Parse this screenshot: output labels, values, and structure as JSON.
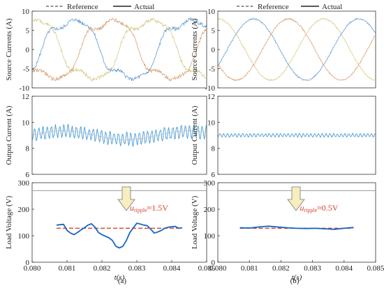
{
  "legend": {
    "reference_label": "Reference",
    "actual_label": "Actual"
  },
  "panel_labels": [
    "(a)",
    "(b)"
  ],
  "colors": {
    "phase_a": "#3b7fc4",
    "phase_b": "#d4874e",
    "phase_c": "#c9be6a",
    "output": "#4a9ad6",
    "output_ref": "#e8a878",
    "load_actual": "#1565c0",
    "load_ref": "#d9412b",
    "arrow": "#f6eebf",
    "axis": "#333333",
    "refline": "#9a9a9a"
  },
  "chart_data": [
    {
      "type": "line",
      "panel": "(a)",
      "ylabel": "Source Currents (A)",
      "xlim": [
        0.08,
        0.085
      ],
      "ylim": [
        -10,
        10
      ],
      "yticks": [
        "10",
        "5",
        "0",
        "-5",
        "-10"
      ],
      "amplitude": 8,
      "phase_count": 3,
      "waveform": "distorted"
    },
    {
      "type": "line",
      "panel": "(a)",
      "ylabel": "Output Current (A)",
      "xlim": [
        0.08,
        0.085
      ],
      "ylim": [
        6,
        12
      ],
      "yticks": [
        "12",
        "10",
        "8",
        "6"
      ],
      "mean": 9.0,
      "ripple": 0.45
    },
    {
      "type": "line",
      "panel": "(a)",
      "ylabel": "Load Voltage (V)",
      "xlabel": "t(s)",
      "xlim": [
        0.08,
        0.085
      ],
      "ylim": [
        0,
        300
      ],
      "yticks": [
        "300",
        "200",
        "100",
        "0"
      ],
      "xticks": [
        "0.080",
        "0.081",
        "0.082",
        "0.083",
        "0.084",
        "0.085"
      ],
      "annotation": {
        "sym": "u",
        "sub": "ripple",
        "text": "≈1.5V"
      },
      "reference_value": 128,
      "upper_line": 270,
      "window": [
        0.0807,
        0.0843
      ],
      "actual": {
        "x": [
          0.0807,
          0.0809,
          0.081,
          0.0811,
          0.0812,
          0.0813,
          0.0814,
          0.0815,
          0.0816,
          0.0817,
          0.0818,
          0.0819,
          0.082,
          0.0821,
          0.0822,
          0.0823,
          0.0824,
          0.0825,
          0.0826,
          0.0827,
          0.0828,
          0.0829,
          0.083,
          0.0831,
          0.0832,
          0.0833,
          0.0834,
          0.0835,
          0.0836,
          0.0837,
          0.0838,
          0.0839,
          0.084,
          0.0841,
          0.0842,
          0.0843
        ],
        "y": [
          140,
          143,
          120,
          110,
          104,
          112,
          122,
          130,
          140,
          145,
          132,
          112,
          104,
          98,
          92,
          82,
          60,
          54,
          60,
          82,
          112,
          130,
          147,
          144,
          140,
          138,
          124,
          110,
          114,
          120,
          128,
          132,
          134,
          135,
          128,
          130
        ]
      }
    },
    {
      "type": "line",
      "panel": "(b)",
      "ylabel": "Source Currents (A)",
      "xlim": [
        0.08,
        0.085
      ],
      "ylim": [
        -10,
        10
      ],
      "yticks": [
        "10",
        "5",
        "0",
        "-5",
        "-10"
      ],
      "amplitude": 8,
      "phase_count": 3,
      "waveform": "sinusoidal"
    },
    {
      "type": "line",
      "panel": "(b)",
      "ylabel": "Output Current (A)",
      "xlim": [
        0.08,
        0.085
      ],
      "ylim": [
        6,
        12
      ],
      "yticks": [
        "12",
        "10",
        "8",
        "6"
      ],
      "mean": 9.0,
      "ripple": 0.12
    },
    {
      "type": "line",
      "panel": "(b)",
      "ylabel": "Load Voltage (V)",
      "xlabel": "t(s)",
      "xlim": [
        0.08,
        0.085
      ],
      "ylim": [
        0,
        300
      ],
      "yticks": [
        "300",
        "200",
        "100",
        "0"
      ],
      "xticks": [
        "0.080",
        "0.081",
        "0.082",
        "0.083",
        "0.084",
        "0.085"
      ],
      "annotation": {
        "sym": "u",
        "sub": "ripple",
        "text": "≈0.5V"
      },
      "reference_value": 128,
      "upper_line": 270,
      "window": [
        0.0807,
        0.0843
      ],
      "actual": {
        "x": [
          0.0807,
          0.081,
          0.0813,
          0.0816,
          0.0819,
          0.0822,
          0.0825,
          0.0828,
          0.0831,
          0.0834,
          0.0837,
          0.084,
          0.0843
        ],
        "y": [
          130,
          129,
          133,
          136,
          133,
          130,
          128,
          127,
          128,
          126,
          124,
          128,
          131
        ]
      }
    }
  ]
}
